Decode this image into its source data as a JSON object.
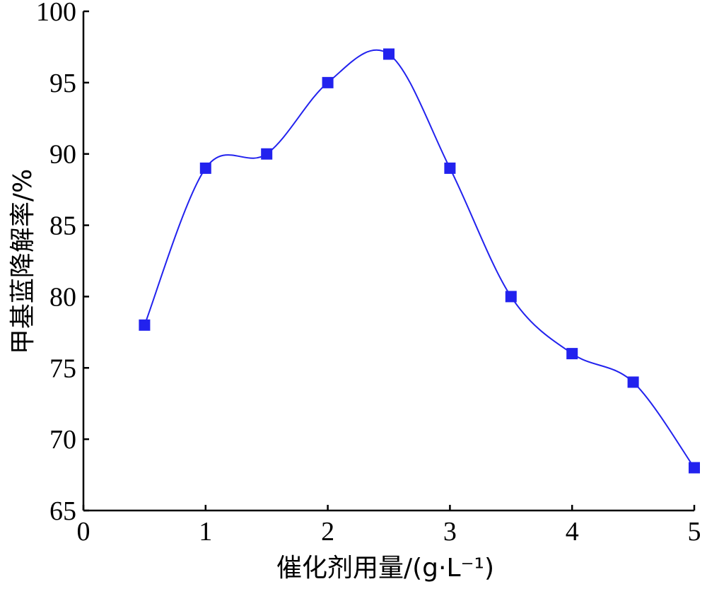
{
  "chart_data": {
    "type": "line",
    "x": [
      0.5,
      1.0,
      1.5,
      2.0,
      2.5,
      3.0,
      3.5,
      4.0,
      4.5,
      5.0
    ],
    "series": [
      {
        "values": [
          78,
          89,
          90,
          95,
          97,
          89,
          80,
          76,
          74,
          68
        ]
      }
    ],
    "xlabel": "催化剂用量/(g·L⁻¹)",
    "ylabel": "甲基蓝降解率/%",
    "xlim": [
      0,
      5
    ],
    "ylim": [
      65,
      100
    ],
    "xticks": [
      "0",
      "1",
      "2",
      "3",
      "4",
      "5"
    ],
    "yticks": [
      "65",
      "70",
      "75",
      "80",
      "85",
      "90",
      "95",
      "100"
    ],
    "marker": "square",
    "line_smooth": true,
    "grid": false,
    "color": "#2222ee"
  }
}
